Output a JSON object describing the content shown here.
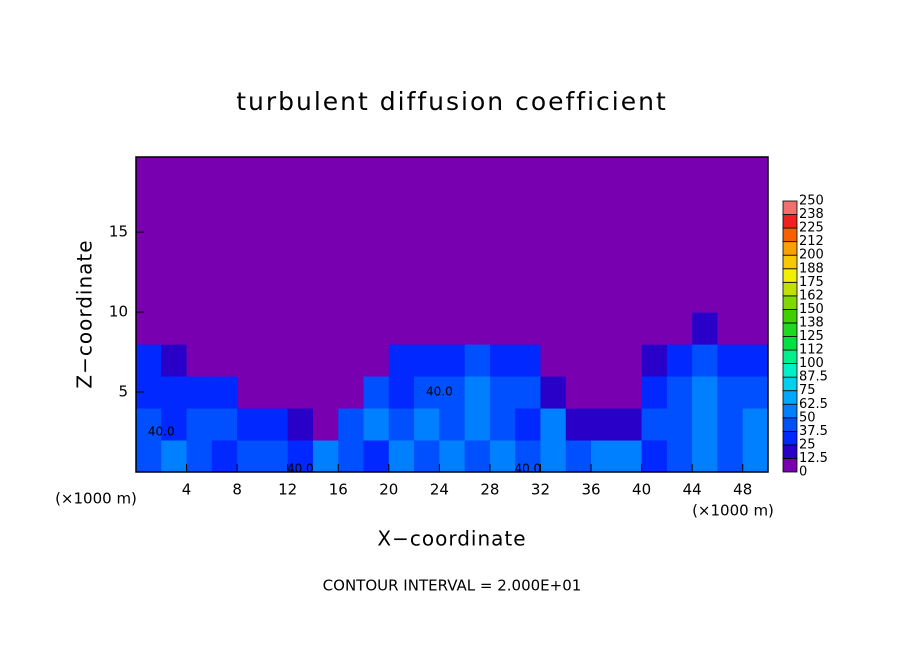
{
  "chart_data": {
    "type": "contour",
    "title": "turbulent diffusion coefficient",
    "x_label": "X−coordinate",
    "y_label": "Z−coordinate",
    "x_unit_left": "(×1000 m)",
    "x_unit_right": "(×1000 m)",
    "footer": "CONTOUR INTERVAL = 2.000E+01",
    "xlim": [
      0,
      50
    ],
    "ylim": [
      0,
      19.7
    ],
    "xticks": [
      4,
      8,
      12,
      16,
      20,
      24,
      28,
      32,
      36,
      40,
      44,
      48
    ],
    "yticks": [
      5,
      10,
      15
    ],
    "x_edges": [
      0,
      2,
      4,
      6,
      8,
      10,
      12,
      14,
      16,
      18,
      20,
      22,
      24,
      26,
      28,
      30,
      32,
      34,
      36,
      38,
      40,
      42,
      44,
      46,
      48,
      50
    ],
    "y_edges": [
      0,
      2,
      4,
      6,
      8,
      10,
      12,
      14,
      16,
      18,
      20
    ],
    "values": [
      [
        45,
        60,
        40,
        35,
        45,
        40,
        35,
        55,
        40,
        35,
        50,
        40,
        55,
        45,
        60,
        40,
        55,
        45,
        60,
        50,
        35,
        45,
        55,
        40,
        60
      ],
      [
        40,
        35,
        45,
        40,
        30,
        25,
        20,
        5,
        40,
        50,
        40,
        60,
        45,
        55,
        40,
        35,
        60,
        20,
        15,
        20,
        40,
        45,
        55,
        40,
        50
      ],
      [
        35,
        30,
        35,
        25,
        10,
        5,
        5,
        5,
        10,
        40,
        35,
        45,
        40,
        55,
        45,
        40,
        20,
        5,
        5,
        5,
        35,
        40,
        55,
        45,
        40
      ],
      [
        25,
        20,
        10,
        5,
        5,
        5,
        5,
        5,
        5,
        10,
        25,
        30,
        30,
        40,
        35,
        25,
        5,
        5,
        5,
        5,
        15,
        30,
        45,
        35,
        30
      ],
      [
        0,
        0,
        0,
        0,
        0,
        0,
        0,
        0,
        0,
        0,
        0,
        0,
        0,
        10,
        5,
        0,
        0,
        0,
        0,
        0,
        0,
        5,
        15,
        0,
        0
      ],
      [
        0,
        0,
        0,
        0,
        0,
        0,
        0,
        0,
        0,
        0,
        0,
        0,
        0,
        0,
        0,
        0,
        0,
        0,
        0,
        0,
        0,
        0,
        0,
        0,
        0
      ],
      [
        0,
        0,
        0,
        0,
        0,
        0,
        0,
        0,
        0,
        0,
        0,
        0,
        0,
        0,
        0,
        0,
        0,
        0,
        0,
        0,
        0,
        0,
        0,
        0,
        0
      ],
      [
        0,
        0,
        0,
        0,
        0,
        0,
        0,
        0,
        0,
        0,
        0,
        0,
        0,
        0,
        0,
        0,
        0,
        0,
        0,
        0,
        0,
        0,
        0,
        0,
        0
      ],
      [
        0,
        0,
        0,
        0,
        0,
        0,
        0,
        0,
        0,
        0,
        0,
        0,
        0,
        0,
        0,
        0,
        0,
        0,
        0,
        0,
        0,
        0,
        0,
        0,
        0
      ],
      [
        0,
        0,
        0,
        0,
        0,
        0,
        0,
        0,
        0,
        0,
        0,
        0,
        0,
        0,
        0,
        0,
        0,
        0,
        0,
        0,
        0,
        0,
        0,
        0,
        0
      ]
    ],
    "contour_labels": [
      {
        "text": "40.0",
        "x": 2,
        "z": 2.5
      },
      {
        "text": "40.0",
        "x": 13,
        "z": 0.2
      },
      {
        "text": "40.0",
        "x": 31,
        "z": 0.2
      },
      {
        "text": "40.0",
        "x": 24,
        "z": 5
      }
    ],
    "levels": [
      0,
      12.5,
      25,
      37.5,
      50,
      62.5,
      75,
      87.5,
      100,
      112,
      125,
      138,
      150,
      162,
      175,
      188,
      200,
      212,
      225,
      238,
      250
    ],
    "colors": [
      "#7800b0",
      "#2800c8",
      "#0028ff",
      "#0050ff",
      "#0080ff",
      "#00a8ff",
      "#00d0f0",
      "#00f0c8",
      "#00f090",
      "#00e040",
      "#20d820",
      "#40d000",
      "#80d800",
      "#c0e000",
      "#f0f000",
      "#f8c800",
      "#f8a000",
      "#f86000",
      "#f02020",
      "#f07070"
    ]
  }
}
